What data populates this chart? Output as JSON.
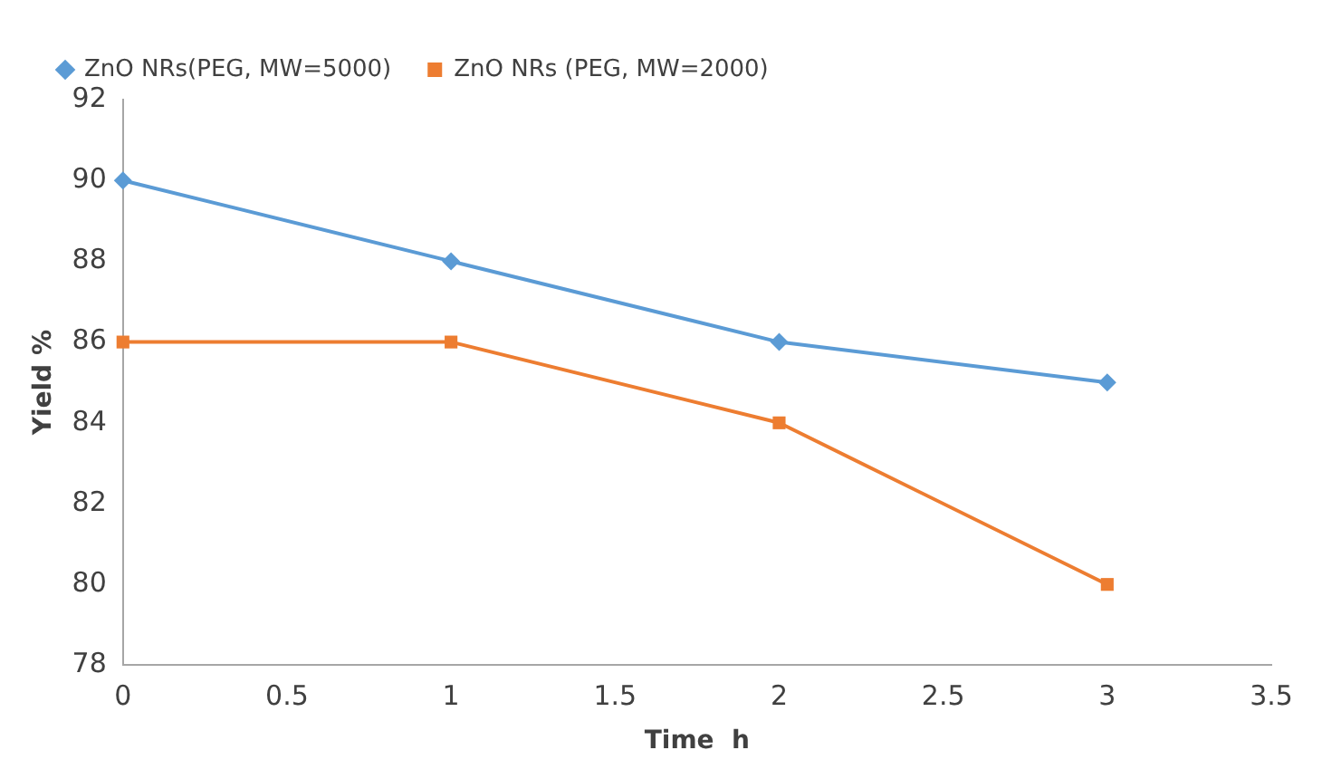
{
  "chart_data": {
    "type": "line",
    "xlabel": "Time  h",
    "ylabel": "Yield %",
    "x": [
      0,
      1,
      2,
      3
    ],
    "series": [
      {
        "name": "ZnO NRs(PEG, MW=5000)",
        "color": "#5b9bd5",
        "marker": "diamond",
        "values": [
          90,
          88,
          86,
          85
        ]
      },
      {
        "name": "ZnO NRs (PEG, MW=2000)",
        "color": "#ed7d31",
        "marker": "square",
        "values": [
          86,
          86,
          84,
          80
        ]
      }
    ],
    "xlim": [
      0,
      3.5
    ],
    "xticks": [
      0,
      0.5,
      1,
      1.5,
      2,
      2.5,
      3,
      3.5
    ],
    "ylim": [
      78,
      92
    ],
    "yticks": [
      78,
      80,
      82,
      84,
      86,
      88,
      90,
      92
    ],
    "grid": false,
    "legend": "top left",
    "line_style": "solid"
  }
}
